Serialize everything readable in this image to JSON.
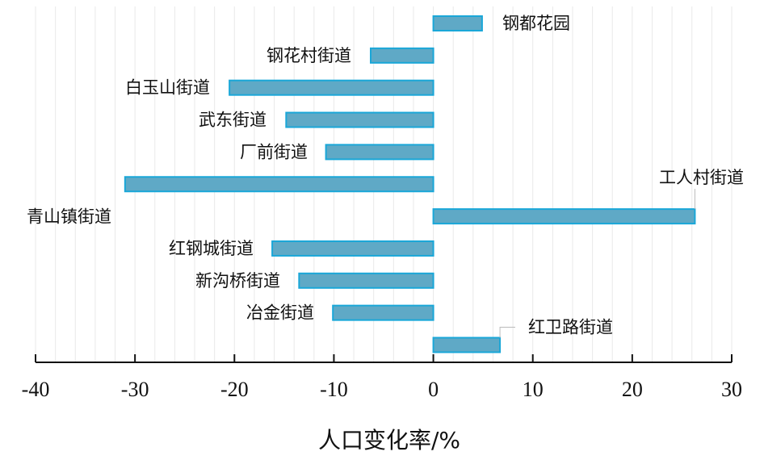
{
  "chart_data": {
    "type": "bar",
    "orientation": "horizontal",
    "categories": [
      "钢都花园",
      "钢花村街道",
      "白玉山街道",
      "武东街道",
      "厂前街道",
      "青山镇街道",
      "工人村街道",
      "红钢城街道",
      "新沟桥街道",
      "冶金街道",
      "红卫路街道"
    ],
    "values": [
      4.9,
      -6.3,
      -20.5,
      -14.8,
      -10.8,
      -31.0,
      26.3,
      -16.2,
      -13.5,
      -10.1,
      6.7
    ],
    "title": "",
    "xlabel": "人口变化率/%",
    "ylabel": "",
    "xlim": [
      -40,
      30
    ],
    "xticks": [
      -40,
      -30,
      -20,
      -10,
      0,
      10,
      20,
      30
    ],
    "xtick_labels": [
      "-40",
      "-30",
      "-20",
      "-10",
      "0",
      "10",
      "20",
      "30"
    ],
    "grid": "vertical minor gridlines",
    "legend": "none",
    "colors": {
      "bar_fill": "#5fa9c6",
      "bar_stroke": "#1aa7d8",
      "axis": "#111111",
      "grid": "#e9e9e9",
      "leader_line": "#bbbbbb"
    }
  }
}
